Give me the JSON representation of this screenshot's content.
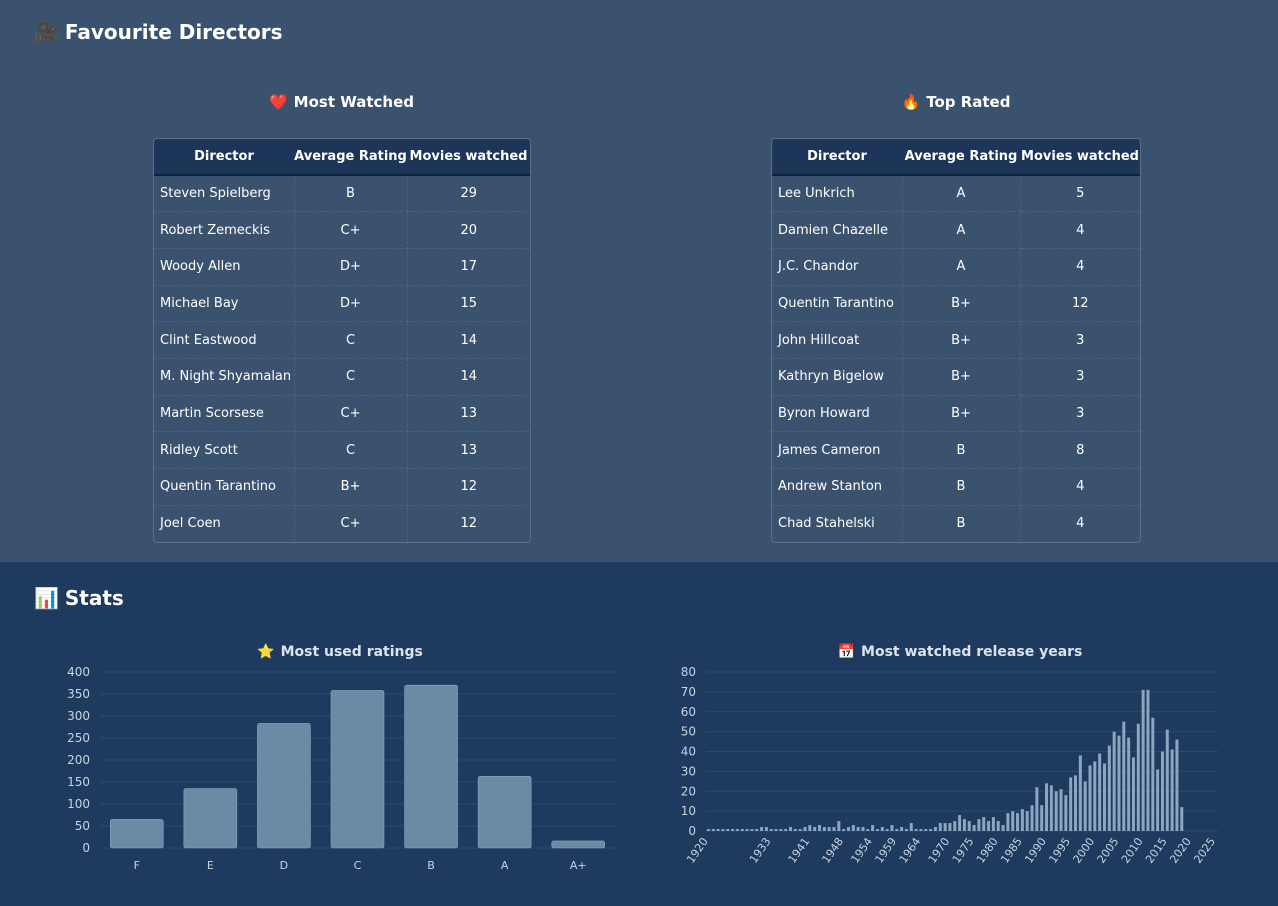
{
  "directors_section": {
    "icon": "movie-camera-icon",
    "title": "Favourite Directors",
    "most_watched": {
      "icon": "heart-icon",
      "title": "Most Watched",
      "headers": [
        "Director",
        "Average Rating",
        "Movies watched"
      ],
      "rows": [
        [
          "Steven Spielberg",
          "B",
          "29"
        ],
        [
          "Robert Zemeckis",
          "C+",
          "20"
        ],
        [
          "Woody Allen",
          "D+",
          "17"
        ],
        [
          "Michael Bay",
          "D+",
          "15"
        ],
        [
          "Clint Eastwood",
          "C",
          "14"
        ],
        [
          "M. Night Shyamalan",
          "C",
          "14"
        ],
        [
          "Martin Scorsese",
          "C+",
          "13"
        ],
        [
          "Ridley Scott",
          "C",
          "13"
        ],
        [
          "Quentin Tarantino",
          "B+",
          "12"
        ],
        [
          "Joel Coen",
          "C+",
          "12"
        ]
      ]
    },
    "top_rated": {
      "icon": "fire-icon",
      "title": "Top Rated",
      "headers": [
        "Director",
        "Average Rating",
        "Movies watched"
      ],
      "rows": [
        [
          "Lee Unkrich",
          "A",
          "5"
        ],
        [
          "Damien Chazelle",
          "A",
          "4"
        ],
        [
          "J.C. Chandor",
          "A",
          "4"
        ],
        [
          "Quentin Tarantino",
          "B+",
          "12"
        ],
        [
          "John Hillcoat",
          "B+",
          "3"
        ],
        [
          "Kathryn Bigelow",
          "B+",
          "3"
        ],
        [
          "Byron Howard",
          "B+",
          "3"
        ],
        [
          "James Cameron",
          "B",
          "8"
        ],
        [
          "Andrew Stanton",
          "B",
          "4"
        ],
        [
          "Chad Stahelski",
          "B",
          "4"
        ]
      ]
    }
  },
  "stats_section": {
    "icon": "bar-chart-icon",
    "title": "Stats"
  },
  "chart_data": [
    {
      "type": "bar",
      "icon": "star-icon",
      "title": "Most used ratings",
      "categories": [
        "F",
        "E",
        "D",
        "C",
        "B",
        "A",
        "A+"
      ],
      "values": [
        65,
        135,
        283,
        358,
        370,
        163,
        16
      ],
      "ylim": [
        0,
        400
      ],
      "yticks": [
        0,
        50,
        100,
        150,
        200,
        250,
        300,
        350,
        400
      ],
      "grid": true,
      "bar_color": "#6a8aa6"
    },
    {
      "type": "bar",
      "icon": "calendar-icon",
      "title": "Most watched release years",
      "x": [
        1920,
        1921,
        1922,
        1923,
        1924,
        1925,
        1926,
        1927,
        1928,
        1929,
        1930,
        1931,
        1932,
        1933,
        1934,
        1935,
        1936,
        1937,
        1938,
        1939,
        1940,
        1941,
        1942,
        1943,
        1944,
        1945,
        1946,
        1947,
        1948,
        1949,
        1950,
        1951,
        1952,
        1953,
        1954,
        1955,
        1956,
        1957,
        1958,
        1959,
        1960,
        1961,
        1962,
        1963,
        1964,
        1965,
        1966,
        1967,
        1968,
        1969,
        1970,
        1971,
        1972,
        1973,
        1974,
        1975,
        1976,
        1977,
        1978,
        1979,
        1980,
        1981,
        1982,
        1983,
        1984,
        1985,
        1986,
        1987,
        1988,
        1989,
        1990,
        1991,
        1992,
        1993,
        1994,
        1995,
        1996,
        1997,
        1998,
        1999,
        2000,
        2001,
        2002,
        2003,
        2004,
        2005,
        2006,
        2007,
        2008,
        2009,
        2010,
        2011,
        2012,
        2013,
        2014,
        2015,
        2016,
        2017,
        2018,
        2019,
        2020,
        2021,
        2022,
        2023,
        2024,
        2025
      ],
      "values": [
        1,
        1,
        1,
        1,
        1,
        1,
        1,
        1,
        1,
        1,
        1,
        2,
        2,
        1,
        1,
        1,
        1,
        2,
        1,
        1,
        2,
        3,
        2,
        3,
        2,
        2,
        2,
        5,
        1,
        2,
        3,
        2,
        2,
        1,
        3,
        1,
        2,
        1,
        3,
        1,
        2,
        1,
        4,
        1,
        1,
        1,
        1,
        2,
        4,
        4,
        4,
        5,
        8,
        6,
        5,
        3,
        6,
        7,
        5,
        7,
        5,
        3,
        9,
        10,
        9,
        11,
        10,
        13,
        22,
        13,
        24,
        23,
        20,
        21,
        18,
        27,
        28,
        38,
        25,
        33,
        35,
        39,
        34,
        43,
        50,
        48,
        55,
        47,
        37,
        54,
        71,
        71,
        57,
        31,
        40,
        51,
        41,
        46,
        12,
        0,
        0,
        0,
        0,
        0,
        0,
        0
      ],
      "xticks": [
        "1920",
        "1933",
        "1941",
        "1948",
        "1954",
        "1959",
        "1964",
        "1970",
        "1975",
        "1980",
        "1985",
        "1990",
        "1995",
        "2000",
        "2005",
        "2010",
        "2015",
        "2020",
        "2025"
      ],
      "ylim": [
        0,
        80
      ],
      "yticks": [
        0,
        10,
        20,
        30,
        40,
        50,
        60,
        70,
        80
      ],
      "grid": true,
      "bar_color": "#8aa6c0"
    }
  ]
}
